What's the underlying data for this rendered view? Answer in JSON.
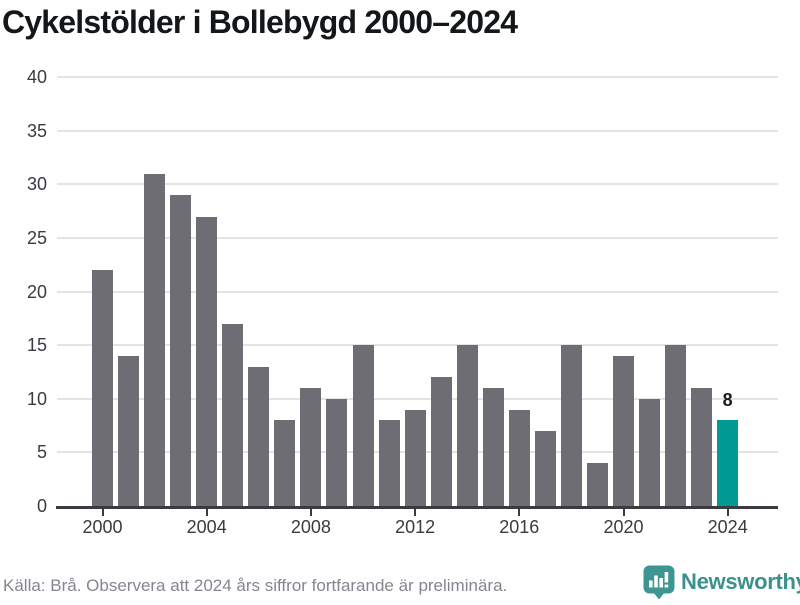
{
  "title": "Cykelstölder i Bollebygd 2000–2024",
  "footer": {
    "source_note": "Källa: Brå. Observera att 2024 års siffror fortfarande är preliminära."
  },
  "branding": {
    "logo_text": "Newsworthy",
    "logo_icon": "newsworthy-chart-bubble-icon"
  },
  "colors": {
    "bar": "#6d6d73",
    "highlight_bar": "#009b94",
    "gridline": "#e4e4e7",
    "axis": "#3a3a40",
    "title_text": "#14171a",
    "tick_text": "#3a3a40",
    "footer_text": "#85858f",
    "logo_teal": "#3d968f"
  },
  "chart_data": {
    "type": "bar",
    "title": "Cykelstölder i Bollebygd 2000–2024",
    "categories": [
      2000,
      2001,
      2002,
      2003,
      2004,
      2005,
      2006,
      2007,
      2008,
      2009,
      2010,
      2011,
      2012,
      2013,
      2014,
      2015,
      2016,
      2017,
      2018,
      2019,
      2020,
      2021,
      2022,
      2023,
      2024
    ],
    "values": [
      22,
      14,
      31,
      29,
      27,
      17,
      13,
      8,
      11,
      10,
      15,
      8,
      9,
      12,
      15,
      11,
      9,
      7,
      15,
      4,
      14,
      10,
      15,
      11,
      8
    ],
    "xlabel": "",
    "ylabel": "",
    "x_tick_labels": [
      "2000",
      "2004",
      "2008",
      "2012",
      "2016",
      "2020",
      "2024"
    ],
    "x_tick_years": [
      2000,
      2004,
      2008,
      2012,
      2016,
      2020,
      2024
    ],
    "y_ticks": [
      0,
      5,
      10,
      15,
      20,
      25,
      30,
      35,
      40
    ],
    "ylim": [
      0,
      40
    ],
    "grid": "horizontal",
    "legend": "none",
    "highlight": {
      "category": 2024,
      "value": 8,
      "data_label": "8",
      "color": "#009b94"
    }
  }
}
